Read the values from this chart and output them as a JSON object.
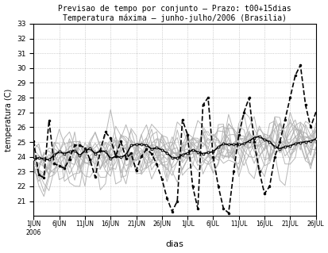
{
  "title_line1": "Previsao de tempo por conjunto – Prazo: t00+15dias",
  "title_line2": "Temperatura máxima – junho-julho/2006 (Brasilia)",
  "xlabel": "dias",
  "ylabel": "temperatura (C)",
  "ylim": [
    20,
    33
  ],
  "yticks": [
    21,
    22,
    23,
    24,
    25,
    26,
    27,
    28,
    29,
    30,
    31,
    32,
    33
  ],
  "xtick_labels": [
    "1JUN\n2006",
    "6JUN",
    "11JUN",
    "16JUN",
    "21JUN",
    "26JUN",
    "1JUL",
    "6JUL",
    "11JUL",
    "16JUL",
    "21JUL",
    "26JUL"
  ],
  "xtick_positions": [
    0,
    5,
    10,
    15,
    20,
    25,
    30,
    35,
    40,
    45,
    50,
    55
  ],
  "n_days": 56,
  "n_ensemble": 15,
  "background_color": "#ffffff",
  "ensemble_color": "#b0b0b0",
  "solid_color": "#000000",
  "dashed_color": "#000000",
  "seed": 7
}
